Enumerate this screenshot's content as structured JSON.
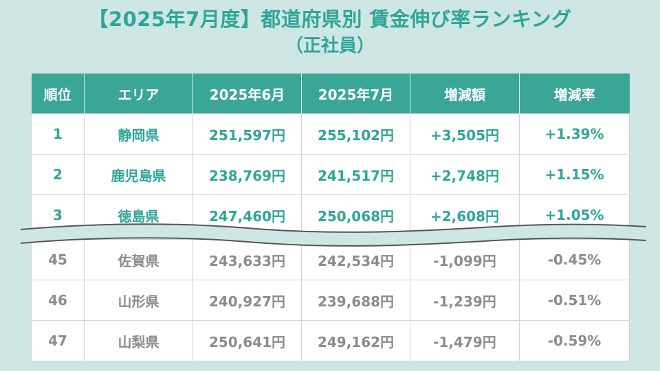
{
  "title": {
    "line1": "【2025年7月度】都道府県別 賃金伸び率ランキング",
    "line2": "（正社員）"
  },
  "table": {
    "headers": [
      "順位",
      "エリア",
      "2025年6月",
      "2025年7月",
      "増減額",
      "増減率"
    ],
    "top_rows": [
      [
        "1",
        "静岡県",
        "251,597円",
        "255,102円",
        "+3,505円",
        "+1.39%"
      ],
      [
        "2",
        "鹿児島県",
        "238,769円",
        "241,517円",
        "+2,748円",
        "+1.15%"
      ],
      [
        "3",
        "徳島県",
        "247,460円",
        "250,068円",
        "+2,608円",
        "+1.05%"
      ]
    ],
    "bottom_rows": [
      [
        "45",
        "佐賀県",
        "243,633円",
        "242,534円",
        "-1,099円",
        "-0.45%"
      ],
      [
        "46",
        "山形県",
        "240,927円",
        "239,688円",
        "-1,239円",
        "-0.51%"
      ],
      [
        "47",
        "山梨県",
        "250,641円",
        "249,162円",
        "-1,479円",
        "-0.59%"
      ]
    ]
  },
  "chart_data": {
    "type": "table",
    "title": "【2025年7月度】都道府県別 賃金伸び率ランキング（正社員）",
    "columns": [
      "順位",
      "エリア",
      "2025年6月",
      "2025年7月",
      "増減額",
      "増減率"
    ],
    "rows": [
      {
        "rank": 1,
        "area": "静岡県",
        "june_2025": 251597,
        "july_2025": 255102,
        "change": 3505,
        "change_rate_pct": 1.39
      },
      {
        "rank": 2,
        "area": "鹿児島県",
        "june_2025": 238769,
        "july_2025": 241517,
        "change": 2748,
        "change_rate_pct": 1.15
      },
      {
        "rank": 3,
        "area": "徳島県",
        "june_2025": 247460,
        "july_2025": 250068,
        "change": 2608,
        "change_rate_pct": 1.05
      },
      {
        "rank": 45,
        "area": "佐賀県",
        "june_2025": 243633,
        "july_2025": 242534,
        "change": -1099,
        "change_rate_pct": -0.45
      },
      {
        "rank": 46,
        "area": "山形県",
        "june_2025": 240927,
        "july_2025": 239688,
        "change": -1239,
        "change_rate_pct": -0.51
      },
      {
        "rank": 47,
        "area": "山梨県",
        "june_2025": 250641,
        "july_2025": 249162,
        "change": -1479,
        "change_rate_pct": -0.59
      }
    ]
  },
  "colors": {
    "accent": "#3aa698",
    "accent_text": "#2fa59a",
    "muted_text": "#8c8c8c",
    "background": "#cfe7e4"
  }
}
